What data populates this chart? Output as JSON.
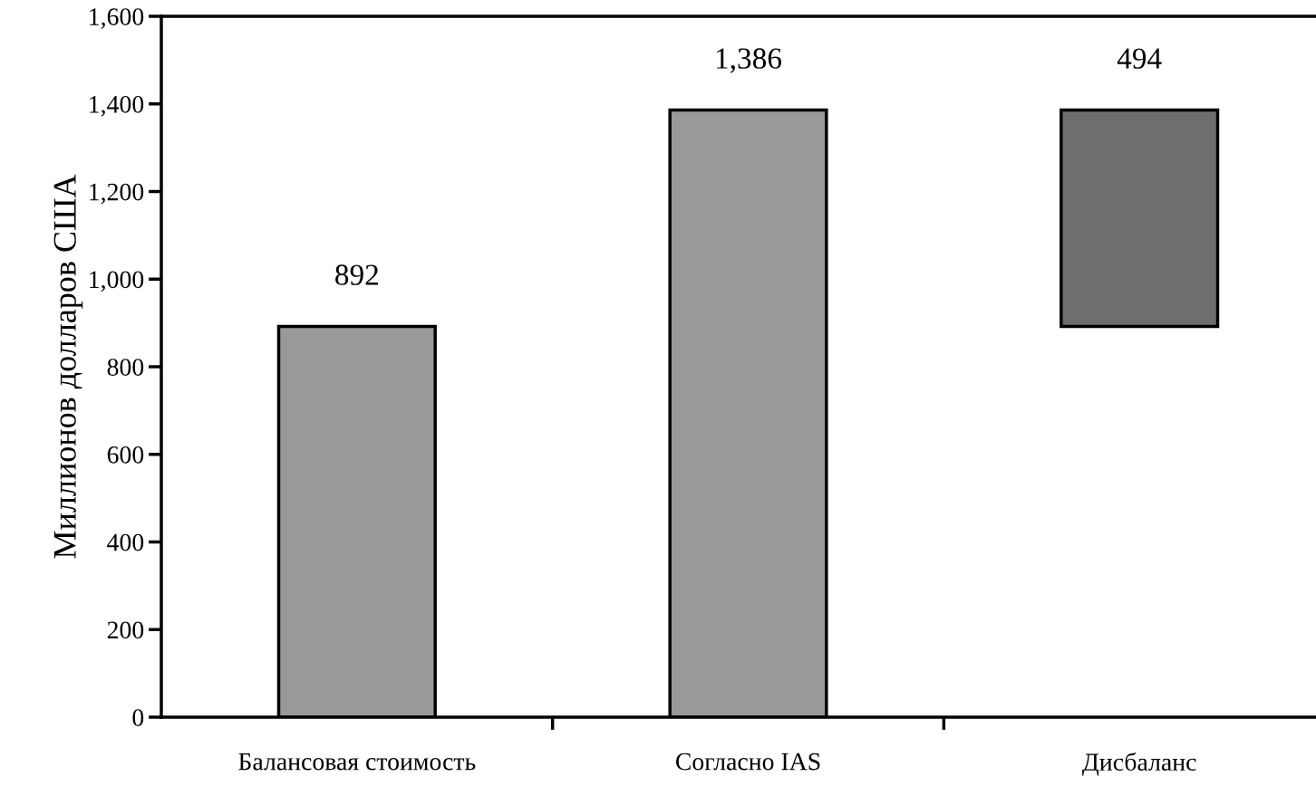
{
  "chart_data": {
    "type": "bar",
    "ylabel": "Миллионов долларов США",
    "categories": [
      "Балансовая стоимость",
      "Согласно IAS",
      "Дисбаланс"
    ],
    "values": [
      892,
      1386,
      494
    ],
    "base": [
      0,
      0,
      892
    ],
    "colors": [
      "#999999",
      "#999999",
      "#6e6e6e"
    ],
    "ylim": [
      0,
      1600
    ],
    "yticks": [
      0,
      200,
      400,
      600,
      800,
      {
        "value": 1000,
        "label": "1,000"
      },
      {
        "value": 1200,
        "label": "1,200"
      },
      {
        "value": 1400,
        "label": "1,400"
      },
      {
        "value": 1600,
        "label": "1,600"
      }
    ],
    "value_labels": [
      "892",
      "1,386",
      "494"
    ],
    "grid": false,
    "legend": false
  }
}
